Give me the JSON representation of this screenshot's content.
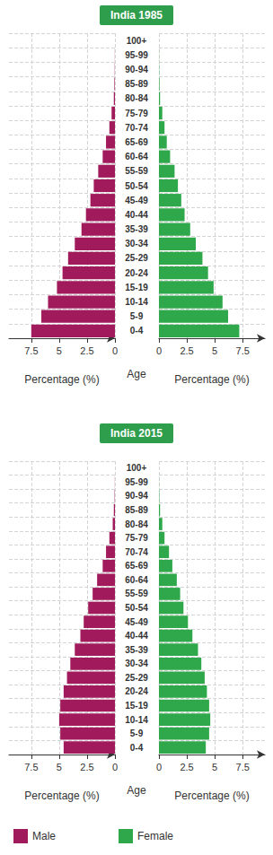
{
  "chart_data": [
    {
      "type": "bar",
      "orientation": "horizontal",
      "title": "India 1985",
      "xlabel": "Percentage (%)",
      "ylabel": "Age",
      "categories": [
        "0-4",
        "5-9",
        "10-14",
        "15-19",
        "20-24",
        "25-29",
        "30-34",
        "35-39",
        "40-44",
        "45-49",
        "50-54",
        "55-59",
        "60-64",
        "65-69",
        "70-74",
        "75-79",
        "80-84",
        "85-89",
        "90-94",
        "95-99",
        "100+"
      ],
      "series": [
        {
          "name": "Male",
          "color": "#a01a5c",
          "values": [
            7.5,
            6.6,
            6.0,
            5.2,
            4.7,
            4.2,
            3.6,
            3.0,
            2.6,
            2.2,
            1.9,
            1.5,
            1.1,
            0.8,
            0.5,
            0.3,
            0.1,
            0.05,
            0.02,
            0.01,
            0
          ]
        },
        {
          "name": "Female",
          "color": "#2ea84a",
          "values": [
            7.2,
            6.2,
            5.7,
            4.9,
            4.4,
            3.9,
            3.3,
            2.8,
            2.3,
            2.0,
            1.7,
            1.4,
            1.0,
            0.7,
            0.5,
            0.3,
            0.1,
            0.05,
            0.02,
            0.01,
            0
          ]
        }
      ],
      "xlim": [
        0,
        9.5
      ],
      "xticks": [
        0,
        2.5,
        5,
        7.5
      ],
      "grid": true,
      "legend": "bottom"
    },
    {
      "type": "bar",
      "orientation": "horizontal",
      "title": "India 2015",
      "xlabel": "Percentage (%)",
      "ylabel": "Age",
      "categories": [
        "0-4",
        "5-9",
        "10-14",
        "15-19",
        "20-24",
        "25-29",
        "30-34",
        "35-39",
        "40-44",
        "45-49",
        "50-54",
        "55-59",
        "60-64",
        "65-69",
        "70-74",
        "75-79",
        "80-84",
        "85-89",
        "90-94",
        "95-99",
        "100+"
      ],
      "series": [
        {
          "name": "Male",
          "color": "#a01a5c",
          "values": [
            4.6,
            4.9,
            5.0,
            4.9,
            4.6,
            4.3,
            4.0,
            3.6,
            3.1,
            2.8,
            2.4,
            2.0,
            1.6,
            1.1,
            0.8,
            0.5,
            0.2,
            0.1,
            0.03,
            0.01,
            0
          ]
        },
        {
          "name": "Female",
          "color": "#2ea84a",
          "values": [
            4.2,
            4.5,
            4.6,
            4.5,
            4.3,
            4.1,
            3.8,
            3.5,
            3.0,
            2.6,
            2.2,
            1.9,
            1.6,
            1.2,
            0.9,
            0.5,
            0.3,
            0.1,
            0.03,
            0.01,
            0
          ]
        }
      ],
      "xlim": [
        0,
        9.5
      ],
      "xticks": [
        0,
        2.5,
        5,
        7.5
      ],
      "grid": true,
      "legend": "bottom"
    }
  ]
}
